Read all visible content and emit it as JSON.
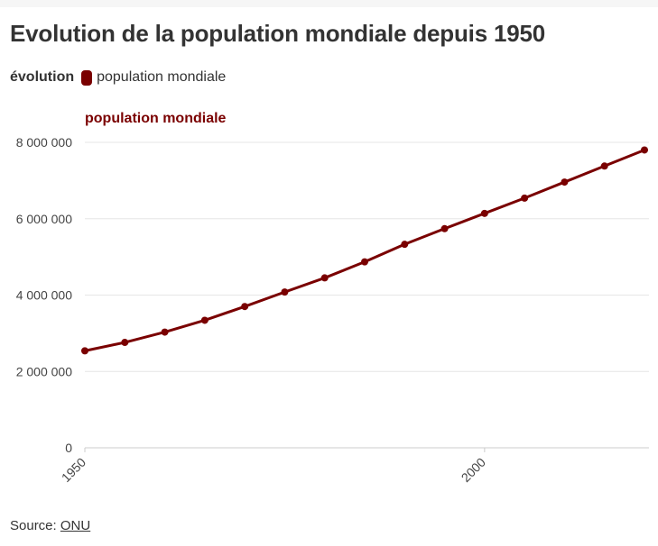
{
  "title": "Evolution de la population mondiale depuis 1950",
  "legend": {
    "title": "évolution",
    "items": [
      {
        "label": "population mondiale",
        "color": "#7a0000"
      }
    ]
  },
  "footer": {
    "prefix": "Source: ",
    "link_text": "ONU"
  },
  "chart_data": {
    "type": "line",
    "panel_title": "population mondiale",
    "x": [
      1950,
      1955,
      1960,
      1965,
      1970,
      1975,
      1980,
      1985,
      1990,
      1995,
      2000,
      2005,
      2010,
      2015,
      2020
    ],
    "series": [
      {
        "name": "population mondiale",
        "color": "#7a0000",
        "values": [
          2540000,
          2760000,
          3030000,
          3340000,
          3700000,
          4080000,
          4450000,
          4870000,
          5330000,
          5740000,
          6140000,
          6540000,
          6960000,
          7380000,
          7800000
        ]
      }
    ],
    "xlim": [
      1950,
      2020
    ],
    "ylim": [
      0,
      8000000
    ],
    "xticks": [
      1950,
      2000
    ],
    "yticks": [
      0,
      2000000,
      4000000,
      6000000,
      8000000
    ],
    "ytick_labels": [
      "0",
      "2 000 000",
      "4 000 000",
      "6 000 000",
      "8 000 000"
    ],
    "grid": "horizontal"
  }
}
